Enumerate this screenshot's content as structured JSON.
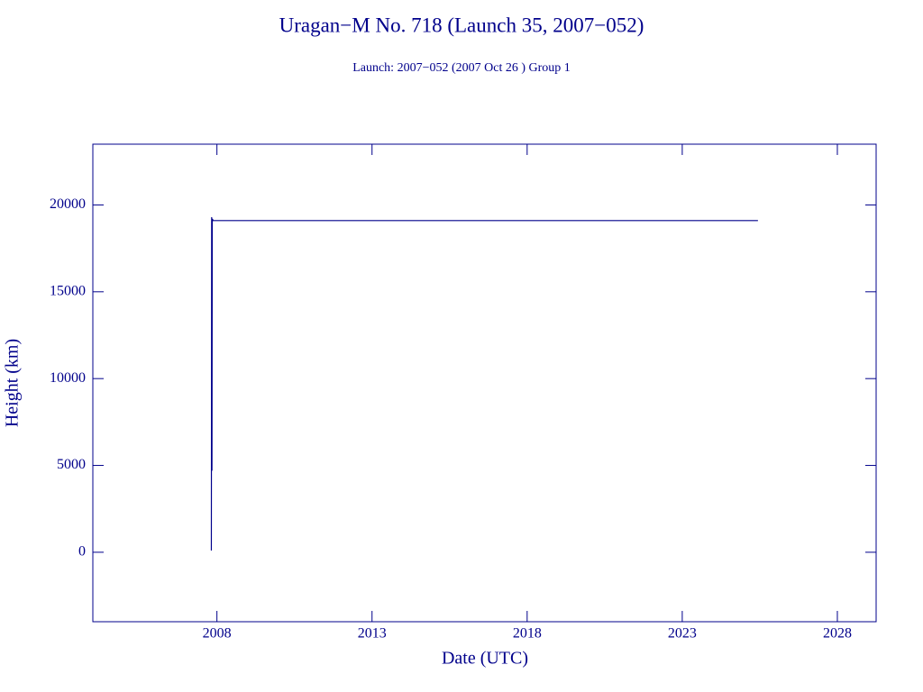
{
  "chart_data": {
    "type": "line",
    "title": "Uragan−M No. 718 (Launch 35, 2007−052)",
    "subtitle": "Launch: 2007−052  (2007 Oct 26 )  Group 1",
    "x_label": "Date (UTC)",
    "y_label": "Height (km)",
    "xlim": [
      2004,
      2029.25
    ],
    "ylim": [
      -4000,
      23500
    ],
    "xticks": [
      2008,
      2013,
      2018,
      2023,
      2028
    ],
    "yticks": [
      0,
      5000,
      10000,
      15000,
      20000
    ],
    "color": "#00008b",
    "series": [
      {
        "x": [
          2007.82,
          2007.83,
          2007.84,
          2007.85,
          2007.88,
          2025.44
        ],
        "values": [
          100,
          19300,
          4700,
          19200,
          19100,
          19100
        ]
      }
    ]
  }
}
